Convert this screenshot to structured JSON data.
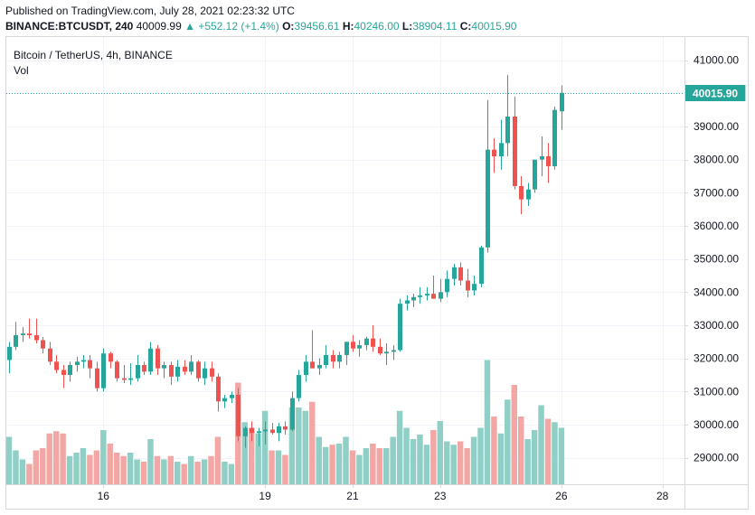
{
  "published": "Published on TradingView.com, July 28, 2021 02:23:32 UTC",
  "ticker": {
    "symbol": "BINANCE:BTCUSDT, 240",
    "last": "40009.99",
    "change": "▲ +552.12 (+1.4%)",
    "o_label": "O:",
    "o_value": "39456.61",
    "h_label": "H:",
    "h_value": "40246.00",
    "l_label": "L:",
    "l_value": "38904.11",
    "c_label": "C:",
    "c_value": "40015.90"
  },
  "legend": {
    "title": "Bitcoin / TetherUS, 4h, BINANCE",
    "volume": "Vol"
  },
  "colors": {
    "up": "#26a69a",
    "down": "#ef5350",
    "up_vol": "#8fcfc6",
    "down_vol": "#f3a7a5",
    "grid": "#f0f3fa",
    "axis": "#d6d8de"
  },
  "current_price": {
    "value": 40015.9,
    "label": "40015.90"
  },
  "chart_data": {
    "type": "candlestick",
    "interval": "4h",
    "ylim": [
      28200,
      41700
    ],
    "y_ticks": [
      29000,
      30000,
      31000,
      32000,
      33000,
      34000,
      35000,
      36000,
      37000,
      38000,
      39000,
      40000,
      41000
    ],
    "y_tick_labels": [
      "29000.00",
      "30000.00",
      "31000.00",
      "32000.00",
      "33000.00",
      "34000.00",
      "35000.00",
      "36000.00",
      "37000.00",
      "38000.00",
      "39000.00",
      "40000.00",
      "41000.00"
    ],
    "x_tick_labels": [
      "16",
      "19",
      "21",
      "23",
      "26",
      "28"
    ],
    "x_tick_bar_index": [
      14,
      38,
      51,
      64,
      82,
      97
    ],
    "candles": [
      {
        "o": 31950,
        "h": 32500,
        "l": 31550,
        "c": 32350,
        "v": 0.42
      },
      {
        "o": 32350,
        "h": 33100,
        "l": 32250,
        "c": 32700,
        "v": 0.3
      },
      {
        "o": 32700,
        "h": 32950,
        "l": 32500,
        "c": 32750,
        "v": 0.22
      },
      {
        "o": 32750,
        "h": 33200,
        "l": 32600,
        "c": 32700,
        "v": 0.18
      },
      {
        "o": 32700,
        "h": 33200,
        "l": 32450,
        "c": 32550,
        "v": 0.3
      },
      {
        "o": 32550,
        "h": 32650,
        "l": 32150,
        "c": 32300,
        "v": 0.32
      },
      {
        "o": 32300,
        "h": 32500,
        "l": 31800,
        "c": 31900,
        "v": 0.45
      },
      {
        "o": 31900,
        "h": 32100,
        "l": 31550,
        "c": 31650,
        "v": 0.47
      },
      {
        "o": 31650,
        "h": 31800,
        "l": 31100,
        "c": 31500,
        "v": 0.45
      },
      {
        "o": 31500,
        "h": 31900,
        "l": 31300,
        "c": 31800,
        "v": 0.25
      },
      {
        "o": 31800,
        "h": 32050,
        "l": 31600,
        "c": 31900,
        "v": 0.28
      },
      {
        "o": 31900,
        "h": 32100,
        "l": 31700,
        "c": 31950,
        "v": 0.32
      },
      {
        "o": 31950,
        "h": 32100,
        "l": 31400,
        "c": 31700,
        "v": 0.26
      },
      {
        "o": 31700,
        "h": 31900,
        "l": 31000,
        "c": 31100,
        "v": 0.3
      },
      {
        "o": 31100,
        "h": 32300,
        "l": 31000,
        "c": 32150,
        "v": 0.48
      },
      {
        "o": 32150,
        "h": 32200,
        "l": 31700,
        "c": 31900,
        "v": 0.36
      },
      {
        "o": 31900,
        "h": 31950,
        "l": 31300,
        "c": 31400,
        "v": 0.28
      },
      {
        "o": 31400,
        "h": 31800,
        "l": 31250,
        "c": 31350,
        "v": 0.25
      },
      {
        "o": 31350,
        "h": 31850,
        "l": 31200,
        "c": 31400,
        "v": 0.28
      },
      {
        "o": 31400,
        "h": 32100,
        "l": 31300,
        "c": 31800,
        "v": 0.22
      },
      {
        "o": 31800,
        "h": 31900,
        "l": 31500,
        "c": 31600,
        "v": 0.2
      },
      {
        "o": 31600,
        "h": 32500,
        "l": 31500,
        "c": 32300,
        "v": 0.4
      },
      {
        "o": 32300,
        "h": 32400,
        "l": 31500,
        "c": 31700,
        "v": 0.25
      },
      {
        "o": 31700,
        "h": 31900,
        "l": 31400,
        "c": 31800,
        "v": 0.22
      },
      {
        "o": 31800,
        "h": 31900,
        "l": 31200,
        "c": 31450,
        "v": 0.25
      },
      {
        "o": 31450,
        "h": 31950,
        "l": 31300,
        "c": 31750,
        "v": 0.2
      },
      {
        "o": 31750,
        "h": 31950,
        "l": 31500,
        "c": 31600,
        "v": 0.18
      },
      {
        "o": 31600,
        "h": 32100,
        "l": 31500,
        "c": 31900,
        "v": 0.25
      },
      {
        "o": 31900,
        "h": 31950,
        "l": 31300,
        "c": 31400,
        "v": 0.2
      },
      {
        "o": 31400,
        "h": 31900,
        "l": 31200,
        "c": 31700,
        "v": 0.22
      },
      {
        "o": 31700,
        "h": 31900,
        "l": 31300,
        "c": 31450,
        "v": 0.25
      },
      {
        "o": 31450,
        "h": 31550,
        "l": 30400,
        "c": 30700,
        "v": 0.42
      },
      {
        "o": 30700,
        "h": 30900,
        "l": 30500,
        "c": 30800,
        "v": 0.2
      },
      {
        "o": 30800,
        "h": 31000,
        "l": 30650,
        "c": 30900,
        "v": 0.18
      },
      {
        "o": 30900,
        "h": 31100,
        "l": 29500,
        "c": 29650,
        "v": 0.9
      },
      {
        "o": 29650,
        "h": 29950,
        "l": 29300,
        "c": 29900,
        "v": 0.55
      },
      {
        "o": 29900,
        "h": 30100,
        "l": 29500,
        "c": 29750,
        "v": 0.5
      },
      {
        "o": 29750,
        "h": 29900,
        "l": 29350,
        "c": 29800,
        "v": 0.45
      },
      {
        "o": 29800,
        "h": 30100,
        "l": 29400,
        "c": 29850,
        "v": 0.65
      },
      {
        "o": 29850,
        "h": 30050,
        "l": 29700,
        "c": 29750,
        "v": 0.3
      },
      {
        "o": 29750,
        "h": 30050,
        "l": 29500,
        "c": 29950,
        "v": 0.3
      },
      {
        "o": 29950,
        "h": 30100,
        "l": 29700,
        "c": 29850,
        "v": 0.26
      },
      {
        "o": 29850,
        "h": 31000,
        "l": 29800,
        "c": 30800,
        "v": 0.68
      },
      {
        "o": 30800,
        "h": 31650,
        "l": 30700,
        "c": 31500,
        "v": 0.68
      },
      {
        "o": 31500,
        "h": 32100,
        "l": 31300,
        "c": 31900,
        "v": 0.65
      },
      {
        "o": 31900,
        "h": 32850,
        "l": 31700,
        "c": 31700,
        "v": 0.73
      },
      {
        "o": 31700,
        "h": 32000,
        "l": 31500,
        "c": 31800,
        "v": 0.42
      },
      {
        "o": 31800,
        "h": 32400,
        "l": 31700,
        "c": 32100,
        "v": 0.33
      },
      {
        "o": 32100,
        "h": 32250,
        "l": 31700,
        "c": 31900,
        "v": 0.35
      },
      {
        "o": 31900,
        "h": 32200,
        "l": 31700,
        "c": 32100,
        "v": 0.36
      },
      {
        "o": 32100,
        "h": 32500,
        "l": 31800,
        "c": 32500,
        "v": 0.42
      },
      {
        "o": 32500,
        "h": 32700,
        "l": 32200,
        "c": 32300,
        "v": 0.3
      },
      {
        "o": 32300,
        "h": 32550,
        "l": 32050,
        "c": 32400,
        "v": 0.26
      },
      {
        "o": 32400,
        "h": 32650,
        "l": 32250,
        "c": 32600,
        "v": 0.32
      },
      {
        "o": 32600,
        "h": 33000,
        "l": 32200,
        "c": 32350,
        "v": 0.36
      },
      {
        "o": 32350,
        "h": 32600,
        "l": 32100,
        "c": 32150,
        "v": 0.32
      },
      {
        "o": 32150,
        "h": 32450,
        "l": 31800,
        "c": 32200,
        "v": 0.32
      },
      {
        "o": 32200,
        "h": 32400,
        "l": 31950,
        "c": 32250,
        "v": 0.42
      },
      {
        "o": 32250,
        "h": 33800,
        "l": 32200,
        "c": 33650,
        "v": 0.65
      },
      {
        "o": 33650,
        "h": 33900,
        "l": 33450,
        "c": 33750,
        "v": 0.5
      },
      {
        "o": 33750,
        "h": 33950,
        "l": 33550,
        "c": 33850,
        "v": 0.4
      },
      {
        "o": 33850,
        "h": 34150,
        "l": 33650,
        "c": 33900,
        "v": 0.44
      },
      {
        "o": 33900,
        "h": 34150,
        "l": 33750,
        "c": 33950,
        "v": 0.35
      },
      {
        "o": 33950,
        "h": 34500,
        "l": 33850,
        "c": 33800,
        "v": 0.48
      },
      {
        "o": 33800,
        "h": 34400,
        "l": 33700,
        "c": 34000,
        "v": 0.56
      },
      {
        "o": 34000,
        "h": 34650,
        "l": 33850,
        "c": 34400,
        "v": 0.38
      },
      {
        "o": 34400,
        "h": 34850,
        "l": 34200,
        "c": 34750,
        "v": 0.35
      },
      {
        "o": 34750,
        "h": 34900,
        "l": 34200,
        "c": 34350,
        "v": 0.38
      },
      {
        "o": 34350,
        "h": 34700,
        "l": 33850,
        "c": 34050,
        "v": 0.32
      },
      {
        "o": 34050,
        "h": 34500,
        "l": 33900,
        "c": 34250,
        "v": 0.42
      },
      {
        "o": 34250,
        "h": 35400,
        "l": 34150,
        "c": 35350,
        "v": 0.5
      },
      {
        "o": 35350,
        "h": 39800,
        "l": 35200,
        "c": 38300,
        "v": 1.1
      },
      {
        "o": 38300,
        "h": 38650,
        "l": 37600,
        "c": 38100,
        "v": 0.6
      },
      {
        "o": 38100,
        "h": 39200,
        "l": 37700,
        "c": 38500,
        "v": 0.45
      },
      {
        "o": 38500,
        "h": 40550,
        "l": 38100,
        "c": 39300,
        "v": 0.75
      },
      {
        "o": 39300,
        "h": 39900,
        "l": 37100,
        "c": 37200,
        "v": 0.88
      },
      {
        "o": 37200,
        "h": 37500,
        "l": 36350,
        "c": 36800,
        "v": 0.6
      },
      {
        "o": 36800,
        "h": 37300,
        "l": 36600,
        "c": 37100,
        "v": 0.4
      },
      {
        "o": 37100,
        "h": 38000,
        "l": 37000,
        "c": 38000,
        "v": 0.48
      },
      {
        "o": 38000,
        "h": 38700,
        "l": 37500,
        "c": 38100,
        "v": 0.7
      },
      {
        "o": 38100,
        "h": 38500,
        "l": 37300,
        "c": 37800,
        "v": 0.58
      },
      {
        "o": 37800,
        "h": 39600,
        "l": 37700,
        "c": 39500,
        "v": 0.55
      },
      {
        "o": 39456.61,
        "h": 40246,
        "l": 38904.11,
        "c": 40015.9,
        "v": 0.5
      }
    ]
  }
}
